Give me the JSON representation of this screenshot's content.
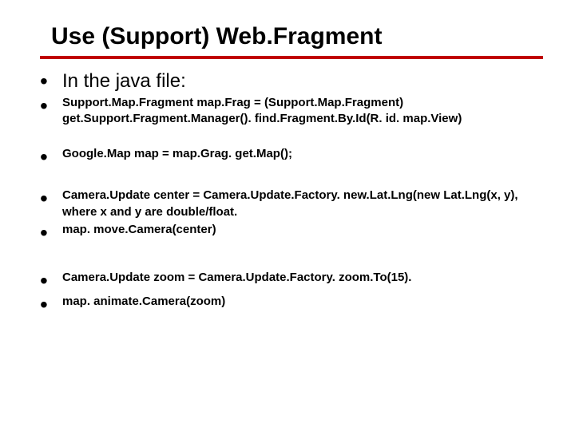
{
  "colors": {
    "accent": "#c00000",
    "text": "#000000",
    "background": "#ffffff",
    "rule": "#c00000"
  },
  "typography": {
    "title_fontsize_pt": 22,
    "lead_fontsize_pt": 18,
    "body_fontsize_pt": 11,
    "font_family": "Arial"
  },
  "title": "Use (Support) Web.Fragment",
  "bullets": {
    "lead": "In the java file:",
    "b1": "Support.Map.Fragment map.Frag = (Support.Map.Fragment) get.Support.Fragment.Manager(). find.Fragment.By.Id(R. id. map.View)",
    "b2": "Google.Map map = map.Grag. get.Map();",
    "b3": "Camera.Update center = Camera.Update.Factory. new.Lat.Lng(new Lat.Lng(x, y), where x and y are double/float.",
    "b4": "map. move.Camera(center)",
    "b5": "Camera.Update zoom = Camera.Update.Factory. zoom.To(15).",
    "b6": "map. animate.Camera(zoom)"
  }
}
